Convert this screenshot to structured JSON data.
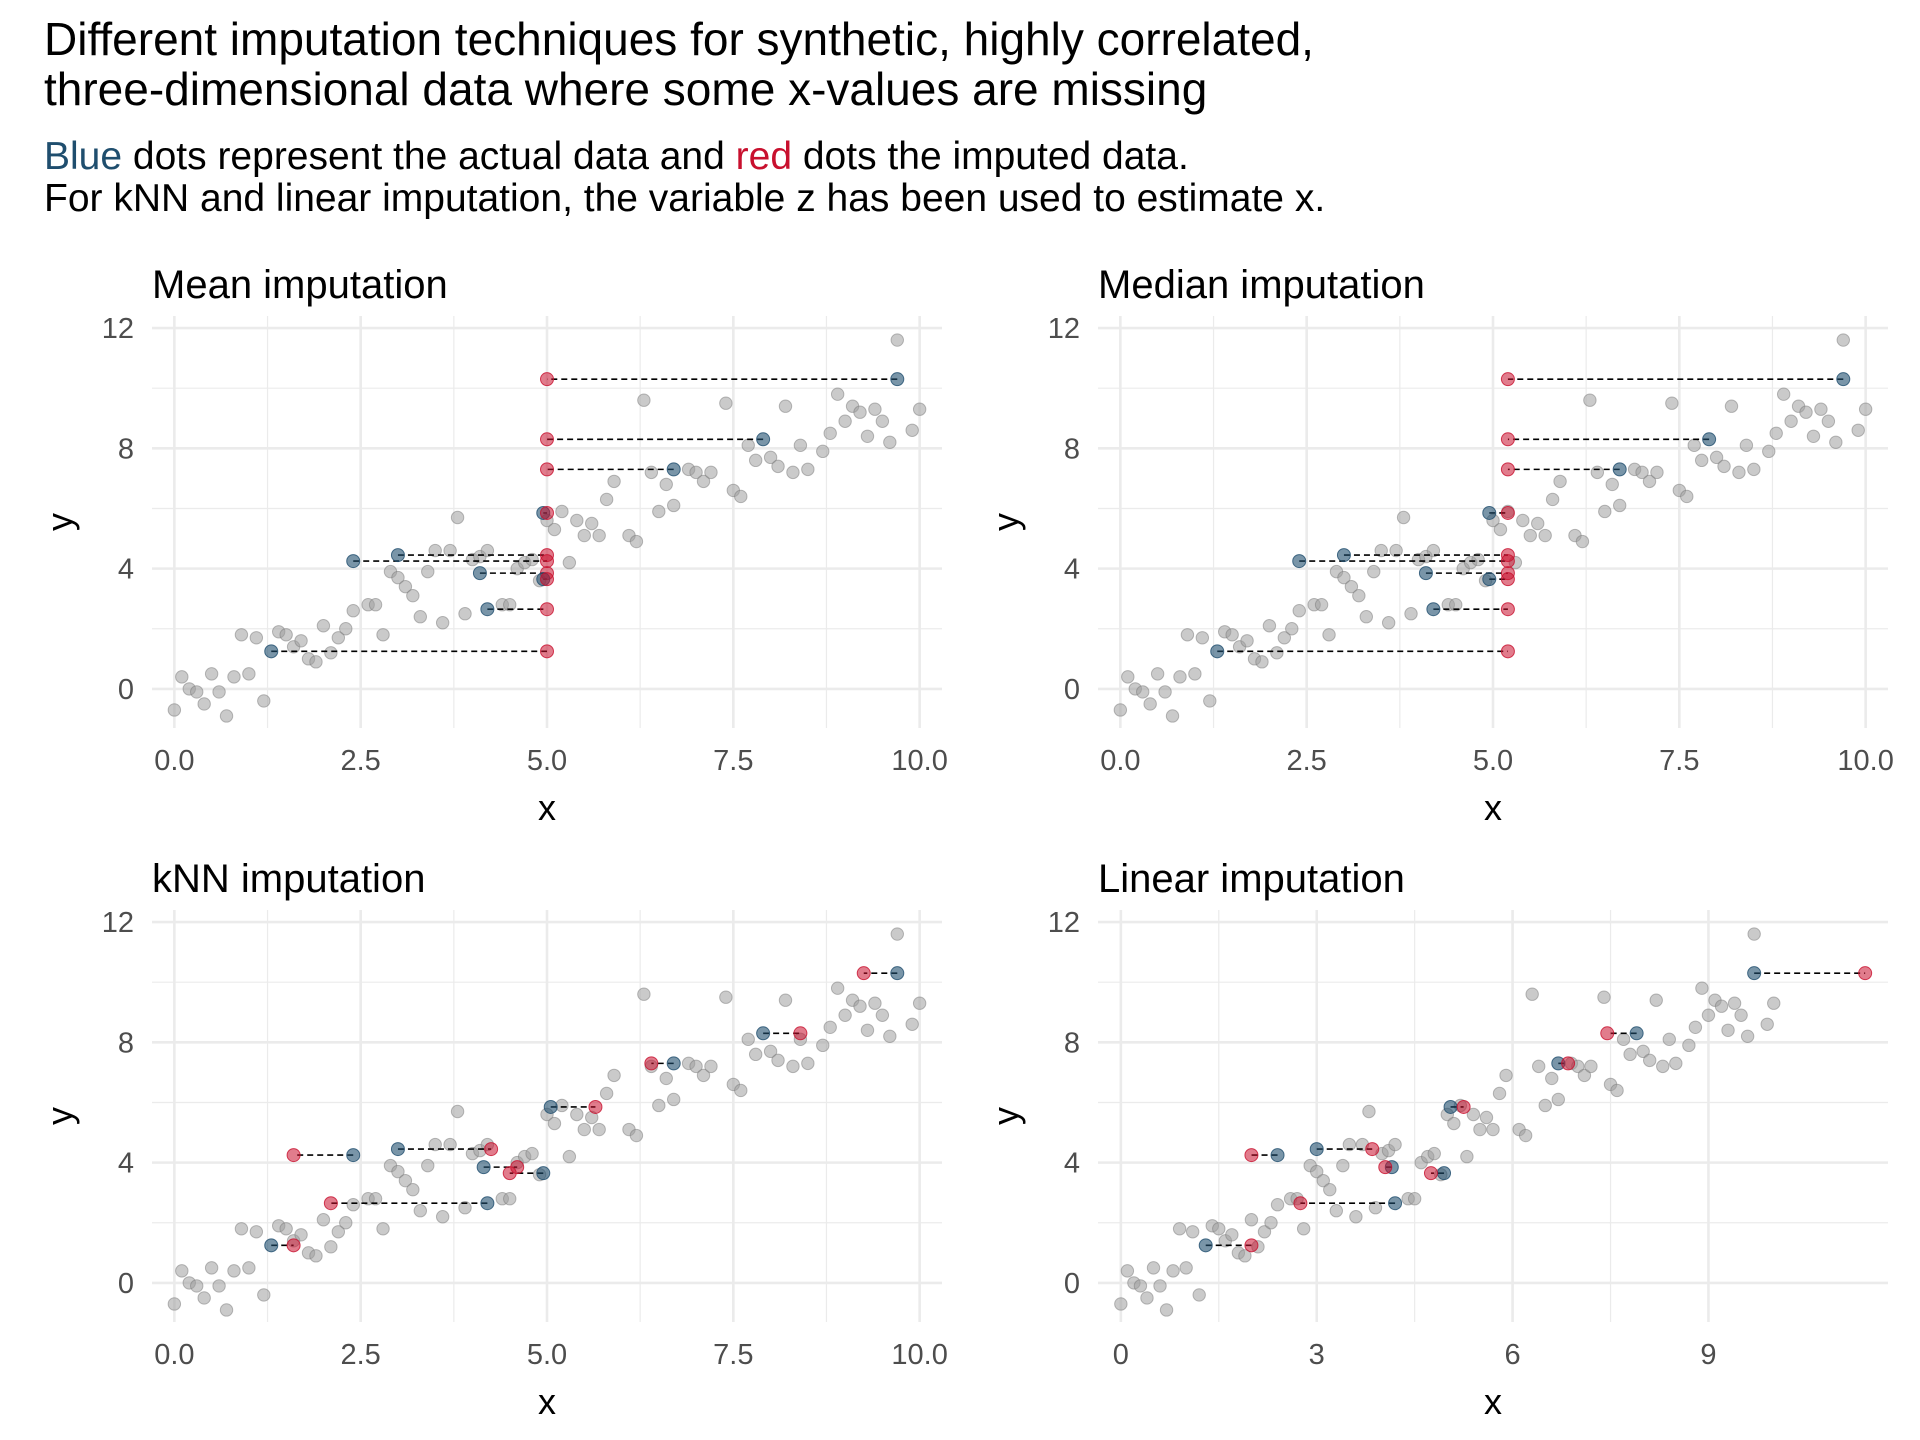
{
  "title_lines": [
    "Different imputation techniques for synthetic, highly correlated,",
    "three-dimensional data where some x-values are missing"
  ],
  "subtitle": {
    "line1": {
      "blue_word": "Blue",
      "text_a": " dots represent the actual data and ",
      "red_word": "red",
      "text_b": " dots the imputed data."
    },
    "line2": "For kNN and linear imputation, the variable z has been used to estimate x."
  },
  "colors": {
    "actual": "#1f4e6e",
    "imputed": "#c8102e",
    "background_points": "#9e9e9e",
    "grid": "#ebebeb",
    "connector": "#000000"
  },
  "icons": {
    "actual_marker": "filled-circle",
    "imputed_marker": "filled-circle",
    "background_marker": "filled-circle"
  },
  "background_points": [
    [
      0.0,
      -0.7
    ],
    [
      0.1,
      0.4
    ],
    [
      0.2,
      0.0
    ],
    [
      0.3,
      -0.1
    ],
    [
      0.4,
      -0.5
    ],
    [
      0.5,
      0.5
    ],
    [
      0.6,
      -0.1
    ],
    [
      0.7,
      -0.9
    ],
    [
      0.8,
      0.4
    ],
    [
      0.9,
      1.8
    ],
    [
      1.0,
      0.5
    ],
    [
      1.1,
      1.7
    ],
    [
      1.2,
      -0.4
    ],
    [
      1.4,
      1.9
    ],
    [
      1.5,
      1.8
    ],
    [
      1.6,
      1.4
    ],
    [
      1.7,
      1.6
    ],
    [
      1.8,
      1.0
    ],
    [
      1.9,
      0.9
    ],
    [
      2.0,
      2.1
    ],
    [
      2.1,
      1.2
    ],
    [
      2.2,
      1.7
    ],
    [
      2.3,
      2.0
    ],
    [
      2.4,
      2.6
    ],
    [
      2.6,
      2.8
    ],
    [
      2.7,
      2.8
    ],
    [
      2.8,
      1.8
    ],
    [
      2.9,
      3.9
    ],
    [
      3.0,
      3.7
    ],
    [
      3.1,
      3.4
    ],
    [
      3.2,
      3.1
    ],
    [
      3.3,
      2.4
    ],
    [
      3.4,
      3.9
    ],
    [
      3.5,
      4.6
    ],
    [
      3.6,
      2.2
    ],
    [
      3.7,
      4.6
    ],
    [
      3.8,
      5.7
    ],
    [
      3.9,
      2.5
    ],
    [
      4.0,
      4.3
    ],
    [
      4.1,
      4.4
    ],
    [
      4.2,
      4.6
    ],
    [
      4.4,
      2.8
    ],
    [
      4.5,
      2.8
    ],
    [
      4.6,
      4.0
    ],
    [
      4.7,
      4.2
    ],
    [
      4.8,
      4.3
    ],
    [
      4.9,
      3.6
    ],
    [
      5.0,
      5.6
    ],
    [
      5.1,
      5.3
    ],
    [
      5.2,
      5.9
    ],
    [
      5.3,
      4.2
    ],
    [
      5.4,
      5.6
    ],
    [
      5.5,
      5.1
    ],
    [
      5.6,
      5.5
    ],
    [
      5.7,
      5.1
    ],
    [
      5.8,
      6.3
    ],
    [
      5.9,
      6.9
    ],
    [
      6.1,
      5.1
    ],
    [
      6.2,
      4.9
    ],
    [
      6.3,
      9.6
    ],
    [
      6.4,
      7.2
    ],
    [
      6.5,
      5.9
    ],
    [
      6.6,
      6.8
    ],
    [
      6.7,
      6.1
    ],
    [
      6.9,
      7.3
    ],
    [
      7.0,
      7.2
    ],
    [
      7.1,
      6.9
    ],
    [
      7.2,
      7.2
    ],
    [
      7.4,
      9.5
    ],
    [
      7.5,
      6.6
    ],
    [
      7.6,
      6.4
    ],
    [
      7.7,
      8.1
    ],
    [
      7.8,
      7.6
    ],
    [
      8.0,
      7.7
    ],
    [
      8.1,
      7.4
    ],
    [
      8.2,
      9.4
    ],
    [
      8.3,
      7.2
    ],
    [
      8.4,
      8.1
    ],
    [
      8.5,
      7.3
    ],
    [
      8.7,
      7.9
    ],
    [
      8.8,
      8.5
    ],
    [
      8.9,
      9.8
    ],
    [
      9.0,
      8.9
    ],
    [
      9.1,
      9.4
    ],
    [
      9.2,
      9.2
    ],
    [
      9.3,
      8.4
    ],
    [
      9.4,
      9.3
    ],
    [
      9.5,
      8.9
    ],
    [
      9.6,
      8.2
    ],
    [
      9.7,
      11.6
    ],
    [
      9.9,
      8.6
    ],
    [
      10.0,
      9.3
    ]
  ],
  "chart_data": [
    {
      "type": "scatter",
      "title": "Mean imputation",
      "xlabel": "x",
      "ylabel": "y",
      "xlim": [
        -0.3,
        10.3
      ],
      "ylim": [
        -1.3,
        12.4
      ],
      "xticks": [
        0,
        2.5,
        5,
        7.5,
        10
      ],
      "xticklabels": [
        "0.0",
        "2.5",
        "5.0",
        "7.5",
        "10.0"
      ],
      "yticks": [
        0,
        4,
        8,
        12
      ],
      "yticklabels": [
        "0",
        "4",
        "8",
        "12"
      ],
      "grid": true,
      "pairs": [
        {
          "actual": [
            9.7,
            10.3
          ],
          "imputed": [
            5.0,
            10.3
          ]
        },
        {
          "actual": [
            7.9,
            8.3
          ],
          "imputed": [
            5.0,
            8.3
          ]
        },
        {
          "actual": [
            6.7,
            7.3
          ],
          "imputed": [
            5.0,
            7.3
          ]
        },
        {
          "actual": [
            4.95,
            5.85
          ],
          "imputed": [
            5.0,
            5.85
          ]
        },
        {
          "actual": [
            3.0,
            4.45
          ],
          "imputed": [
            5.0,
            4.45
          ]
        },
        {
          "actual": [
            2.4,
            4.25
          ],
          "imputed": [
            5.0,
            4.25
          ]
        },
        {
          "actual": [
            4.1,
            3.85
          ],
          "imputed": [
            5.0,
            3.85
          ]
        },
        {
          "actual": [
            4.95,
            3.65
          ],
          "imputed": [
            5.0,
            3.65
          ]
        },
        {
          "actual": [
            4.2,
            2.65
          ],
          "imputed": [
            5.0,
            2.65
          ]
        },
        {
          "actual": [
            1.3,
            1.25
          ],
          "imputed": [
            5.0,
            1.25
          ]
        }
      ]
    },
    {
      "type": "scatter",
      "title": "Median imputation",
      "xlabel": "x",
      "ylabel": "y",
      "xlim": [
        -0.3,
        10.3
      ],
      "ylim": [
        -1.3,
        12.4
      ],
      "xticks": [
        0,
        2.5,
        5,
        7.5,
        10
      ],
      "xticklabels": [
        "0.0",
        "2.5",
        "5.0",
        "7.5",
        "10.0"
      ],
      "yticks": [
        0,
        4,
        8,
        12
      ],
      "yticklabels": [
        "0",
        "4",
        "8",
        "12"
      ],
      "grid": true,
      "pairs": [
        {
          "actual": [
            9.7,
            10.3
          ],
          "imputed": [
            5.2,
            10.3
          ]
        },
        {
          "actual": [
            7.9,
            8.3
          ],
          "imputed": [
            5.2,
            8.3
          ]
        },
        {
          "actual": [
            6.7,
            7.3
          ],
          "imputed": [
            5.2,
            7.3
          ]
        },
        {
          "actual": [
            4.95,
            5.85
          ],
          "imputed": [
            5.2,
            5.85
          ]
        },
        {
          "actual": [
            3.0,
            4.45
          ],
          "imputed": [
            5.2,
            4.45
          ]
        },
        {
          "actual": [
            2.4,
            4.25
          ],
          "imputed": [
            5.2,
            4.25
          ]
        },
        {
          "actual": [
            4.1,
            3.85
          ],
          "imputed": [
            5.2,
            3.85
          ]
        },
        {
          "actual": [
            4.95,
            3.65
          ],
          "imputed": [
            5.2,
            3.65
          ]
        },
        {
          "actual": [
            4.2,
            2.65
          ],
          "imputed": [
            5.2,
            2.65
          ]
        },
        {
          "actual": [
            1.3,
            1.25
          ],
          "imputed": [
            5.2,
            1.25
          ]
        }
      ]
    },
    {
      "type": "scatter",
      "title": "kNN imputation",
      "xlabel": "x",
      "ylabel": "y",
      "xlim": [
        -0.3,
        10.3
      ],
      "ylim": [
        -1.3,
        12.4
      ],
      "xticks": [
        0,
        2.5,
        5,
        7.5,
        10
      ],
      "xticklabels": [
        "0.0",
        "2.5",
        "5.0",
        "7.5",
        "10.0"
      ],
      "yticks": [
        0,
        4,
        8,
        12
      ],
      "yticklabels": [
        "0",
        "4",
        "8",
        "12"
      ],
      "grid": true,
      "pairs": [
        {
          "actual": [
            9.7,
            10.3
          ],
          "imputed": [
            9.25,
            10.3
          ]
        },
        {
          "actual": [
            7.9,
            8.3
          ],
          "imputed": [
            8.4,
            8.3
          ]
        },
        {
          "actual": [
            6.7,
            7.3
          ],
          "imputed": [
            6.4,
            7.3
          ]
        },
        {
          "actual": [
            5.05,
            5.85
          ],
          "imputed": [
            5.65,
            5.85
          ]
        },
        {
          "actual": [
            3.0,
            4.45
          ],
          "imputed": [
            4.25,
            4.45
          ]
        },
        {
          "actual": [
            2.4,
            4.25
          ],
          "imputed": [
            1.6,
            4.25
          ]
        },
        {
          "actual": [
            4.15,
            3.85
          ],
          "imputed": [
            4.6,
            3.85
          ]
        },
        {
          "actual": [
            4.95,
            3.65
          ],
          "imputed": [
            4.5,
            3.65
          ]
        },
        {
          "actual": [
            4.2,
            2.65
          ],
          "imputed": [
            2.1,
            2.65
          ]
        },
        {
          "actual": [
            1.3,
            1.25
          ],
          "imputed": [
            1.6,
            1.25
          ]
        }
      ]
    },
    {
      "type": "scatter",
      "title": "Linear imputation",
      "xlabel": "x",
      "ylabel": "y",
      "xlim": [
        -0.35,
        11.75
      ],
      "ylim": [
        -1.3,
        12.4
      ],
      "xticks": [
        0,
        3,
        6,
        9
      ],
      "xticklabels": [
        "0",
        "3",
        "6",
        "9"
      ],
      "yticks": [
        0,
        4,
        8,
        12
      ],
      "yticklabels": [
        "0",
        "4",
        "8",
        "12"
      ],
      "grid": true,
      "pairs": [
        {
          "actual": [
            9.7,
            10.3
          ],
          "imputed": [
            11.4,
            10.3
          ]
        },
        {
          "actual": [
            7.9,
            8.3
          ],
          "imputed": [
            7.45,
            8.3
          ]
        },
        {
          "actual": [
            6.7,
            7.3
          ],
          "imputed": [
            6.85,
            7.3
          ]
        },
        {
          "actual": [
            5.05,
            5.85
          ],
          "imputed": [
            5.25,
            5.85
          ]
        },
        {
          "actual": [
            3.0,
            4.45
          ],
          "imputed": [
            3.85,
            4.45
          ]
        },
        {
          "actual": [
            2.4,
            4.25
          ],
          "imputed": [
            2.0,
            4.25
          ]
        },
        {
          "actual": [
            4.15,
            3.85
          ],
          "imputed": [
            4.05,
            3.85
          ]
        },
        {
          "actual": [
            4.95,
            3.65
          ],
          "imputed": [
            4.75,
            3.65
          ]
        },
        {
          "actual": [
            4.2,
            2.65
          ],
          "imputed": [
            2.75,
            2.65
          ]
        },
        {
          "actual": [
            1.3,
            1.25
          ],
          "imputed": [
            2.0,
            1.25
          ]
        }
      ]
    }
  ]
}
